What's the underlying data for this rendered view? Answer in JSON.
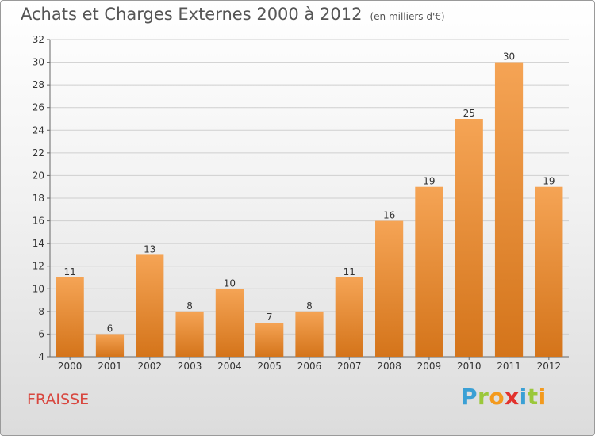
{
  "header": {
    "title": "Achats et Charges Externes 2000 à 2012",
    "subtitle": "(en milliers d'€)"
  },
  "footer": {
    "place": "FRAISSE",
    "brand_letters": [
      {
        "ch": "P",
        "color": "#3aa0d5"
      },
      {
        "ch": "r",
        "color": "#9bc83b"
      },
      {
        "ch": "o",
        "color": "#f39a1e"
      },
      {
        "ch": "x",
        "color": "#e2322d"
      },
      {
        "ch": "i",
        "color": "#3aa0d5"
      },
      {
        "ch": "t",
        "color": "#9bc83b"
      },
      {
        "ch": "i",
        "color": "#f39a1e"
      }
    ]
  },
  "chart_data": {
    "type": "bar",
    "title": "Achats et Charges Externes 2000 à 2012",
    "subtitle": "(en milliers d'€)",
    "categories": [
      "2000",
      "2001",
      "2002",
      "2003",
      "2004",
      "2005",
      "2006",
      "2007",
      "2008",
      "2009",
      "2010",
      "2011",
      "2012"
    ],
    "values": [
      11,
      6,
      13,
      8,
      10,
      7,
      8,
      11,
      16,
      19,
      25,
      30,
      19
    ],
    "ylim": [
      4,
      32
    ],
    "yticks": [
      4,
      6,
      8,
      10,
      12,
      14,
      16,
      18,
      20,
      22,
      24,
      26,
      28,
      30,
      32
    ],
    "grid": true,
    "data_labels": true,
    "colors": {
      "bar_top": "#f5a455",
      "bar_bottom": "#d4741a",
      "grid": "#cfcfcf"
    }
  }
}
